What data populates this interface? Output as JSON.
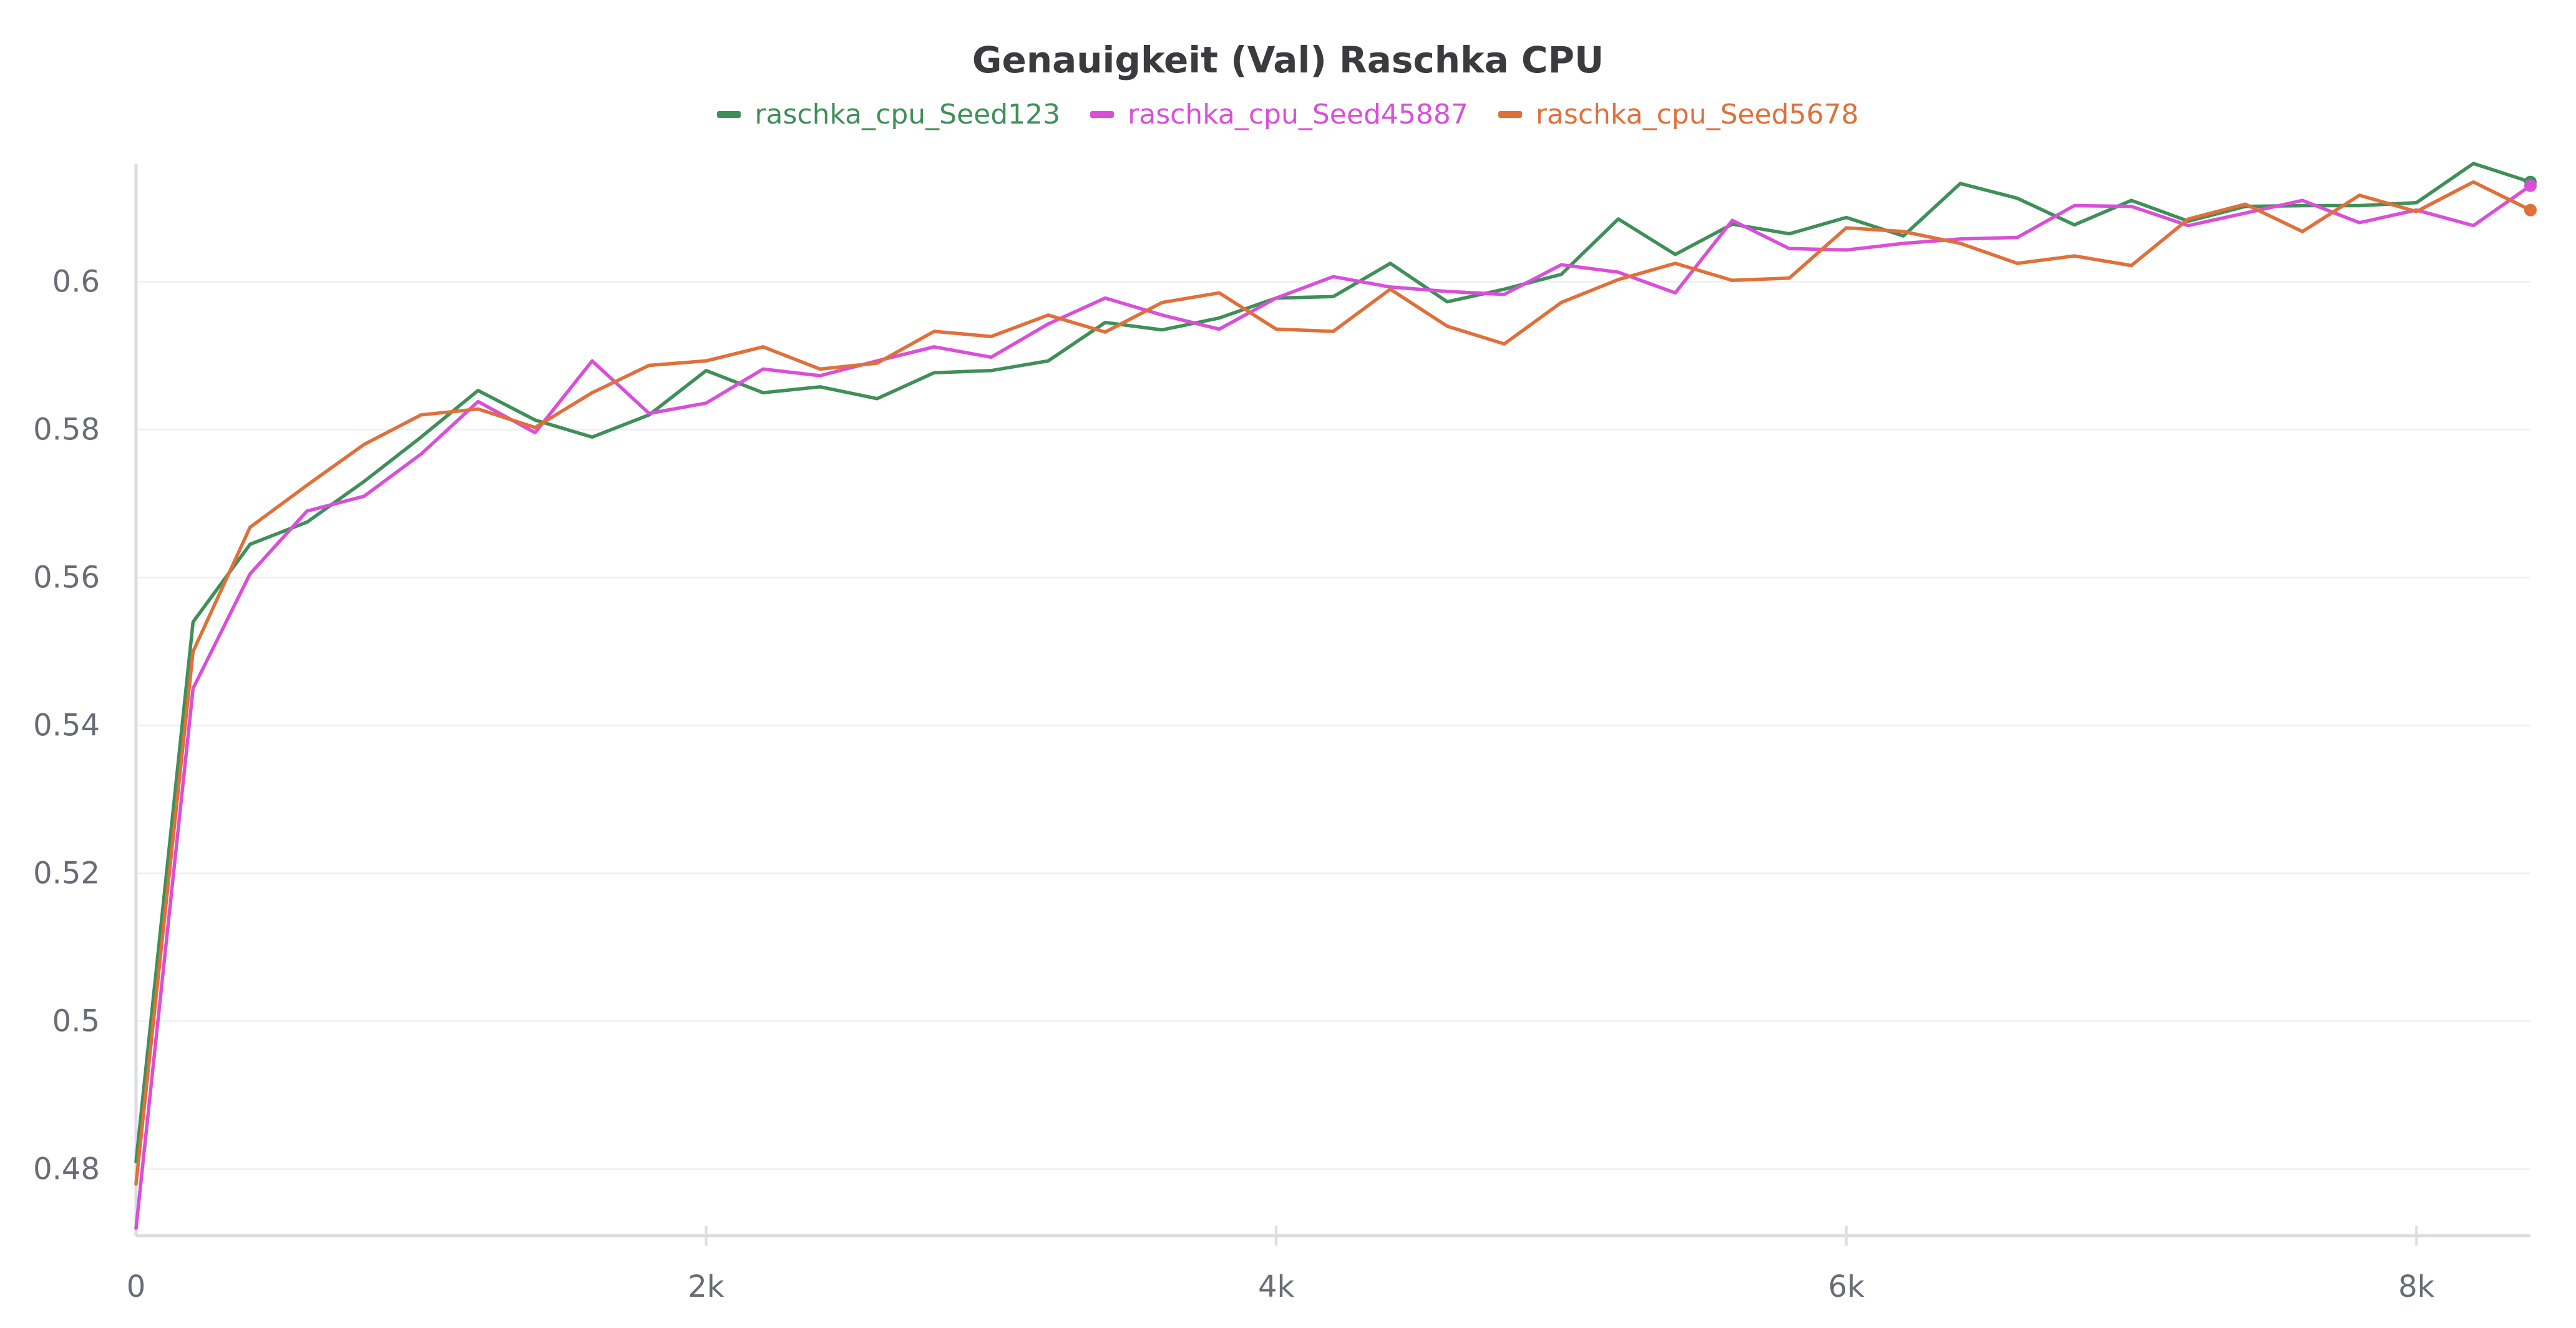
{
  "chart_data": {
    "type": "line",
    "title": "Genauigkeit (Val) Raschka CPU",
    "xlabel": "",
    "ylabel": "",
    "xlim": [
      0,
      8400
    ],
    "ylim": [
      0.471,
      0.616
    ],
    "x_ticks": [
      {
        "value": 0,
        "label": "0"
      },
      {
        "value": 2000,
        "label": "2k"
      },
      {
        "value": 4000,
        "label": "4k"
      },
      {
        "value": 6000,
        "label": "6k"
      },
      {
        "value": 8000,
        "label": "8k"
      }
    ],
    "y_ticks": [
      {
        "value": 0.48,
        "label": "0.48"
      },
      {
        "value": 0.5,
        "label": "0.5"
      },
      {
        "value": 0.52,
        "label": "0.52"
      },
      {
        "value": 0.54,
        "label": "0.54"
      },
      {
        "value": 0.56,
        "label": "0.56"
      },
      {
        "value": 0.58,
        "label": "0.58"
      },
      {
        "value": 0.6,
        "label": "0.6"
      }
    ],
    "grid": true,
    "legend_position": "top-center",
    "x": [
      0,
      200,
      400,
      600,
      800,
      1000,
      1200,
      1400,
      1600,
      1800,
      2000,
      2200,
      2400,
      2600,
      2800,
      3000,
      3200,
      3400,
      3600,
      3800,
      4000,
      4200,
      4400,
      4600,
      4800,
      5000,
      5200,
      5400,
      5600,
      5800,
      6000,
      6200,
      6400,
      6600,
      6800,
      7000,
      7200,
      7400,
      7600,
      7800,
      8000,
      8200,
      8400
    ],
    "series": [
      {
        "name": "raschka_cpu_Seed123",
        "color": "#3f8f58",
        "values": [
          0.481,
          0.554,
          0.5645,
          0.5675,
          0.573,
          0.579,
          0.5853,
          0.5813,
          0.579,
          0.582,
          0.588,
          0.585,
          0.5858,
          0.5842,
          0.5877,
          0.588,
          0.5893,
          0.5945,
          0.5935,
          0.5951,
          0.5978,
          0.598,
          0.6025,
          0.5973,
          0.599,
          0.601,
          0.6085,
          0.6037,
          0.6078,
          0.6065,
          0.6087,
          0.6062,
          0.6133,
          0.6113,
          0.6077,
          0.611,
          0.6082,
          0.6102,
          0.6103,
          0.6103,
          0.6107,
          0.616,
          0.6135
        ]
      },
      {
        "name": "raschka_cpu_Seed45887",
        "color": "#d94fd9",
        "values": [
          0.472,
          0.545,
          0.5605,
          0.569,
          0.571,
          0.5767,
          0.5838,
          0.5796,
          0.5893,
          0.5822,
          0.5836,
          0.5882,
          0.5873,
          0.5893,
          0.5912,
          0.5898,
          0.5943,
          0.5978,
          0.5955,
          0.5936,
          0.5978,
          0.6007,
          0.5993,
          0.5987,
          0.5983,
          0.6023,
          0.6013,
          0.5985,
          0.6083,
          0.6045,
          0.6043,
          0.6052,
          0.6058,
          0.606,
          0.6103,
          0.6102,
          0.6076,
          0.6093,
          0.611,
          0.608,
          0.6097,
          0.6076,
          0.613
        ]
      },
      {
        "name": "raschka_cpu_Seed5678",
        "color": "#e0703a",
        "values": [
          0.478,
          0.55,
          0.5668,
          0.5725,
          0.578,
          0.582,
          0.5828,
          0.5803,
          0.585,
          0.5887,
          0.5893,
          0.5912,
          0.5882,
          0.589,
          0.5933,
          0.5926,
          0.5955,
          0.5932,
          0.5972,
          0.5985,
          0.5936,
          0.5933,
          0.599,
          0.594,
          0.5916,
          0.5972,
          0.6003,
          0.6025,
          0.6002,
          0.6005,
          0.6073,
          0.6068,
          0.6052,
          0.6025,
          0.6035,
          0.6022,
          0.6085,
          0.6105,
          0.6068,
          0.6117,
          0.6095,
          0.6135,
          0.6097
        ]
      }
    ]
  }
}
